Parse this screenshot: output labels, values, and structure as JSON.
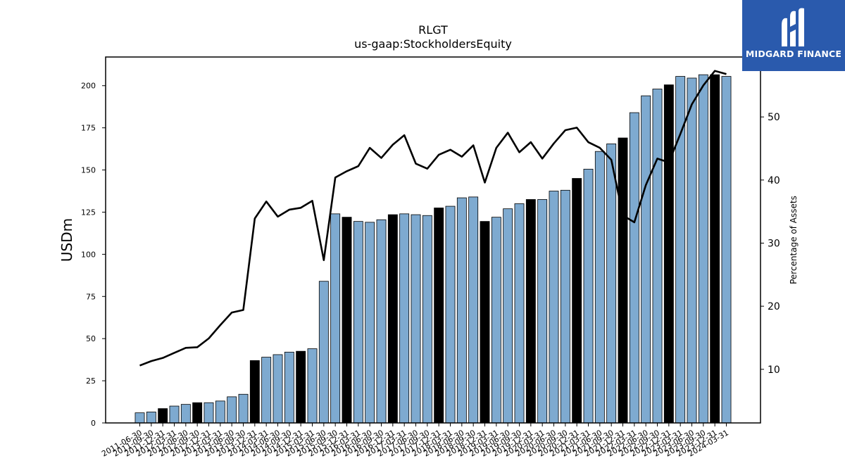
{
  "chart_data": {
    "type": "bar",
    "title": "RLGT",
    "subtitle": "us-gaap:StockholdersEquity",
    "ylabel": "USDm",
    "y2label": "Percentage of Assets",
    "ylim": [
      0,
      217
    ],
    "y2lim": [
      1.5,
      59.5
    ],
    "yticks": [
      0,
      25,
      50,
      75,
      100,
      125,
      150,
      175,
      200
    ],
    "y2ticks": [
      10,
      20,
      30,
      40,
      50
    ],
    "categories": [
      "2011-06-30",
      "2011-09-30",
      "2011-12-31",
      "2012-03-31",
      "2012-06-30",
      "2012-09-30",
      "2012-12-31",
      "2013-03-31",
      "2013-06-30",
      "2013-09-30",
      "2013-12-31",
      "2014-03-31",
      "2014-06-30",
      "2014-09-30",
      "2014-12-31",
      "2015-03-31",
      "2015-06-30",
      "2015-09-30",
      "2015-12-31",
      "2016-03-31",
      "2016-06-30",
      "2016-09-30",
      "2016-12-31",
      "2017-03-31",
      "2017-06-30",
      "2017-09-30",
      "2017-12-31",
      "2018-03-31",
      "2018-06-30",
      "2018-09-30",
      "2018-12-31",
      "2019-03-31",
      "2019-06-30",
      "2019-09-30",
      "2019-12-31",
      "2020-03-31",
      "2020-06-30",
      "2020-09-30",
      "2020-12-31",
      "2021-03-31",
      "2021-06-30",
      "2021-09-30",
      "2021-12-31",
      "2022-03-31",
      "2022-06-30",
      "2022-09-30",
      "2022-12-31",
      "2023-03-31",
      "2023-06-30",
      "2023-09-30",
      "2023-12-31",
      "2024-03-31"
    ],
    "series": [
      {
        "kind": "bar",
        "axis": "left",
        "values": [
          6.0,
          6.5,
          8.5,
          10.0,
          11.0,
          12.0,
          12.0,
          13.0,
          15.5,
          17.0,
          37.0,
          39.0,
          40.5,
          42.0,
          42.5,
          44.0,
          84.0,
          124.0,
          122.0,
          119.5,
          119.0,
          120.5,
          123.5,
          124.0,
          123.5,
          123.0,
          127.5,
          128.5,
          133.5,
          134.0,
          119.5,
          122.0,
          127.0,
          130.0,
          132.5,
          132.5,
          137.5,
          138.0,
          145.0,
          150.5,
          161.0,
          165.5,
          169.0,
          184.0,
          194.0,
          198.0,
          200.5,
          205.5,
          204.5,
          206.5,
          206.5,
          205.5
        ],
        "highlight": [
          false,
          false,
          true,
          false,
          false,
          true,
          false,
          false,
          false,
          false,
          true,
          false,
          false,
          false,
          true,
          false,
          false,
          false,
          true,
          false,
          false,
          false,
          true,
          false,
          false,
          false,
          true,
          false,
          false,
          false,
          true,
          false,
          false,
          false,
          true,
          false,
          false,
          false,
          true,
          false,
          false,
          false,
          true,
          false,
          false,
          false,
          true,
          false,
          false,
          false,
          true,
          false
        ]
      },
      {
        "kind": "line",
        "axis": "right",
        "values": [
          10.6,
          11.3,
          11.8,
          12.6,
          13.4,
          13.5,
          14.9,
          17.0,
          19.0,
          19.4,
          33.9,
          36.6,
          34.2,
          35.3,
          35.6,
          36.7,
          27.3,
          40.4,
          41.4,
          42.2,
          45.1,
          43.5,
          45.6,
          47.1,
          42.6,
          41.8,
          44.0,
          44.8,
          43.7,
          45.5,
          39.6,
          45.1,
          47.5,
          44.4,
          46.0,
          43.4,
          45.8,
          47.9,
          48.3,
          46.0,
          45.1,
          43.2,
          34.4,
          33.3,
          39.2,
          43.4,
          42.8,
          47.3,
          52.0,
          55.0,
          57.3,
          56.8
        ]
      }
    ],
    "colors": {
      "bar": "#7eaad0",
      "bar_highlight": "#000000",
      "bar_edge": "#000000",
      "line": "#000000",
      "logo_bg": "#2a5aad"
    },
    "legend": "none",
    "grid": false
  },
  "branding": {
    "logo_text": "MIDGARD FINANCE"
  }
}
